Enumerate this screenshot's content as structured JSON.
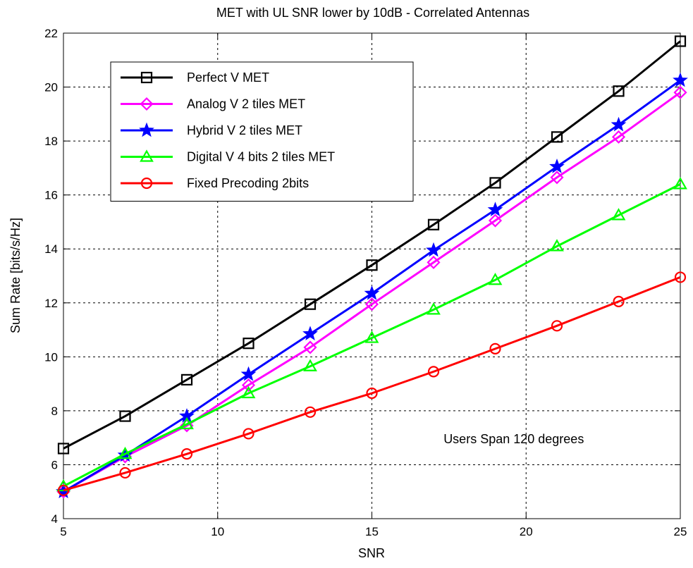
{
  "chart_data": {
    "type": "line",
    "title": "MET with UL SNR lower by 10dB - Correlated Antennas",
    "xlabel": "SNR",
    "ylabel": "Sum Rate [bits/s/Hz]",
    "xlim": [
      5,
      25
    ],
    "ylim": [
      4,
      22
    ],
    "xticks": [
      5,
      10,
      15,
      20,
      25
    ],
    "yticks": [
      4,
      6,
      8,
      10,
      12,
      14,
      16,
      18,
      20,
      22
    ],
    "grid": true,
    "legend_position": "top-left",
    "x": [
      5,
      7,
      9,
      11,
      13,
      15,
      17,
      19,
      21,
      23,
      25
    ],
    "series": [
      {
        "name": "Perfect V MET",
        "color": "#000000",
        "marker": "square",
        "values": [
          6.6,
          7.8,
          9.15,
          10.5,
          11.95,
          13.4,
          14.9,
          16.45,
          18.15,
          19.85,
          21.7
        ]
      },
      {
        "name": "Analog V 2 tiles MET",
        "color": "#ff00ff",
        "marker": "diamond",
        "values": [
          5.0,
          6.3,
          7.45,
          8.95,
          10.35,
          11.95,
          13.5,
          15.05,
          16.65,
          18.15,
          19.8
        ]
      },
      {
        "name": "Hybrid V 2 tiles MET",
        "color": "#0000ff",
        "marker": "star",
        "values": [
          5.0,
          6.35,
          7.8,
          9.35,
          10.85,
          12.35,
          13.95,
          15.45,
          17.05,
          18.6,
          20.25
        ]
      },
      {
        "name": "Digital V 4 bits 2 tiles MET",
        "color": "#00ff00",
        "marker": "triangle",
        "values": [
          5.2,
          6.4,
          7.5,
          8.65,
          9.65,
          10.7,
          11.75,
          12.85,
          14.1,
          15.25,
          16.4
        ]
      },
      {
        "name": "Fixed Precoding 2bits",
        "color": "#ff0000",
        "marker": "circle",
        "values": [
          5.05,
          5.7,
          6.4,
          7.15,
          7.95,
          8.65,
          9.45,
          10.3,
          11.15,
          12.05,
          12.95
        ]
      }
    ],
    "annotations": [
      {
        "text": "Users Span 120 degrees",
        "x": 19.6,
        "y": 6.8
      }
    ]
  }
}
